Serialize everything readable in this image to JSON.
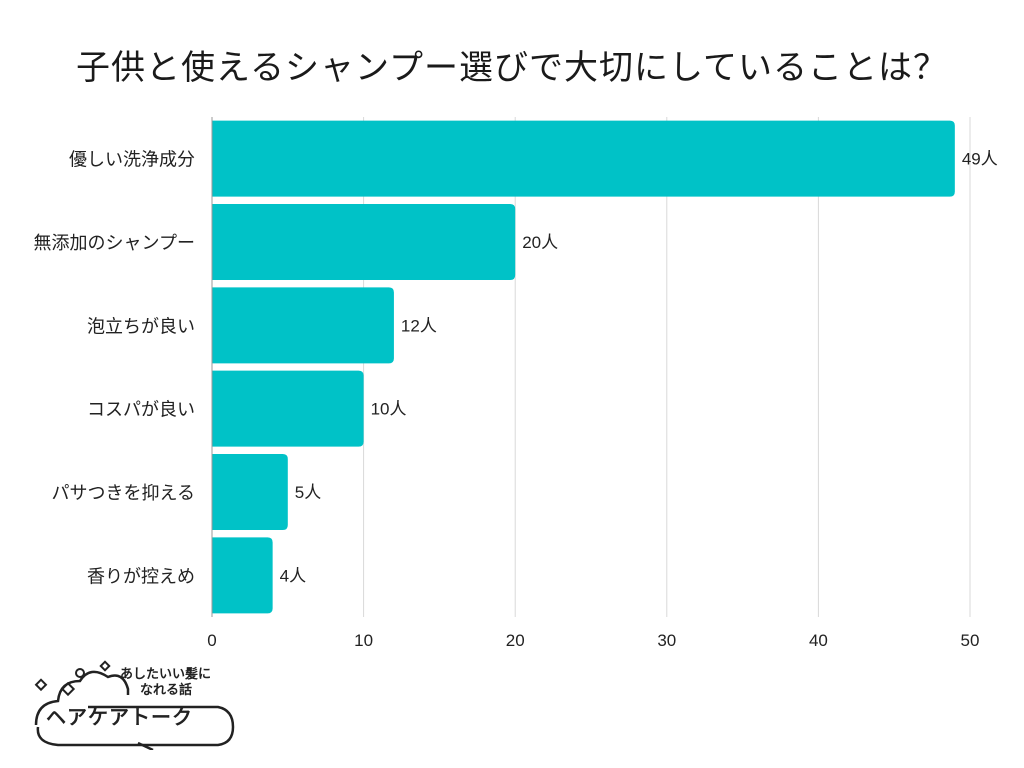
{
  "chart_data": {
    "type": "bar",
    "orientation": "horizontal",
    "title": "子供と使えるシャンプー選びで大切にしていることは？",
    "categories": [
      "優しい洗浄成分",
      "無添加のシャンプー",
      "泡立ちが良い",
      "コスパが良い",
      "パサつきを抑える",
      "香りが控えめ"
    ],
    "values": [
      49,
      20,
      12,
      10,
      5,
      4
    ],
    "value_labels": [
      "49人",
      "20人",
      "12人",
      "10人",
      "5人",
      "4人"
    ],
    "xlim": [
      0,
      50
    ],
    "xticks": [
      "0",
      "10",
      "20",
      "30",
      "40",
      "50"
    ],
    "xlabel": "",
    "ylabel": "",
    "grid": true,
    "bar_color": "#00c2c7",
    "grid_color": "#d9d9d9"
  },
  "logo": {
    "line1": "あしたいい髪に",
    "line2": "なれる話",
    "brand": "ヘアケアトーク"
  }
}
